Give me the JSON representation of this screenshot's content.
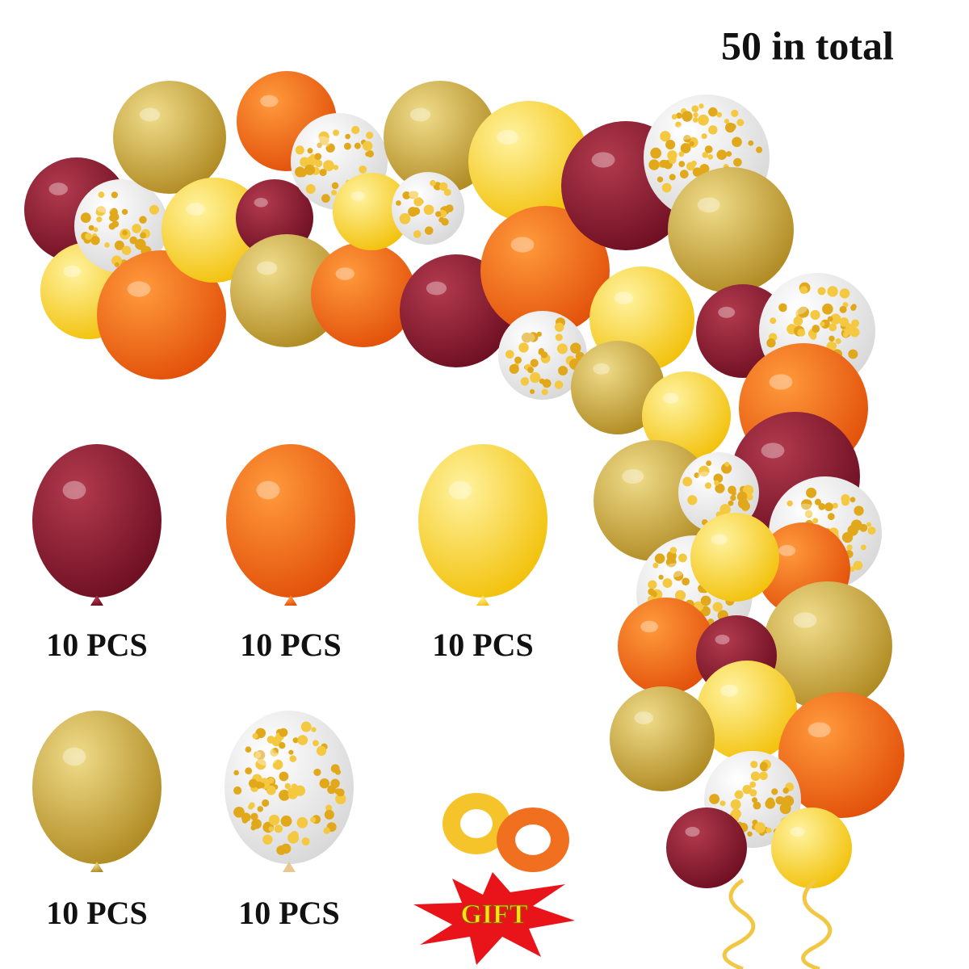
{
  "title": "50 in total",
  "items": [
    {
      "label": "10 PCS"
    },
    {
      "label": "10 PCS"
    },
    {
      "label": "10 PCS"
    },
    {
      "label": "10 PCS"
    },
    {
      "label": "10 PCS"
    }
  ],
  "gift": "GIFT"
}
